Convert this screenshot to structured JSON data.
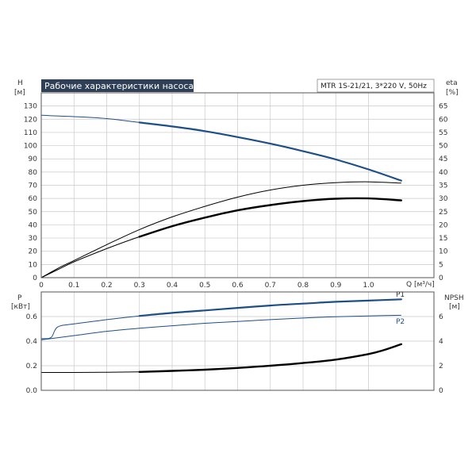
{
  "chart_data": [
    {
      "type": "line",
      "title": "Рабочие характеристики насоса",
      "subtitle": "MTR 1S-21/21, 3*220 V, 50Hz",
      "xlabel": "Q [м³/ч]",
      "ylabel_left": "H",
      "ylabel_left_unit": "[м]",
      "ylabel_right": "eta",
      "ylabel_right_unit": "[%]",
      "xlim": [
        0,
        1.2
      ],
      "ylim": [
        0,
        140
      ],
      "ylim_right": [
        0,
        70
      ],
      "x_ticks": [
        0,
        0.1,
        0.2,
        0.3,
        0.4,
        0.5,
        0.6,
        0.7,
        0.8,
        0.9,
        1.0
      ],
      "y_ticks": [
        0,
        10,
        20,
        30,
        40,
        50,
        60,
        70,
        80,
        90,
        100,
        110,
        120,
        130
      ],
      "y_ticks_right": [
        0,
        5,
        10,
        15,
        20,
        25,
        30,
        35,
        40,
        45,
        50,
        55,
        60,
        65
      ],
      "grid": true,
      "series": [
        {
          "axis": "left",
          "color": "#1d4f86",
          "width": 2.2,
          "x": [
            0,
            0.1,
            0.2,
            0.3,
            0.4,
            0.5,
            0.6,
            0.7,
            0.8,
            0.9,
            1.0,
            1.1
          ],
          "y": [
            123,
            122,
            120.5,
            117.5,
            114.5,
            111,
            106.5,
            101.5,
            95.8,
            89.5,
            82,
            73.5
          ],
          "highlight_from": 0.3
        },
        {
          "axis": "right",
          "color": "#000000",
          "width": 1,
          "x": [
            0,
            0.05,
            0.1,
            0.2,
            0.3,
            0.4,
            0.5,
            0.6,
            0.7,
            0.8,
            0.9,
            1.0,
            1.1
          ],
          "y": [
            0,
            3.5,
            6.5,
            12.5,
            18.2,
            23,
            27,
            30.5,
            33.2,
            35,
            36,
            36.3,
            35.8
          ]
        },
        {
          "axis": "left",
          "color": "#000000",
          "width": 2.4,
          "x": [
            0,
            0.05,
            0.1,
            0.2,
            0.3,
            0.4,
            0.5,
            0.6,
            0.7,
            0.8,
            0.9,
            1.0,
            1.1
          ],
          "y": [
            0,
            6,
            12,
            22,
            31,
            39,
            45.5,
            51,
            55,
            58,
            59.8,
            60,
            58.5
          ],
          "highlight_from": 0.3
        }
      ]
    },
    {
      "type": "line",
      "ylabel_left": "P",
      "ylabel_left_unit": "[кВт]",
      "ylabel_right": "NPSH",
      "ylabel_right_unit": "[м]",
      "xlim": [
        0,
        1.2
      ],
      "ylim": [
        0,
        0.8
      ],
      "ylim_right": [
        0,
        8
      ],
      "y_ticks": [
        0,
        0.2,
        0.4,
        0.6
      ],
      "y_tick_labels": [
        "0.0",
        "0.2",
        "0.4",
        "0.6"
      ],
      "y_ticks_right": [
        0,
        2,
        4,
        6
      ],
      "grid": true,
      "series": [
        {
          "name": "P1",
          "axis": "left",
          "color": "#1d4f86",
          "width": 2.2,
          "x": [
            0,
            0.03,
            0.05,
            0.1,
            0.2,
            0.3,
            0.4,
            0.5,
            0.6,
            0.7,
            0.8,
            0.9,
            1.0,
            1.1
          ],
          "y": [
            0.42,
            0.43,
            0.515,
            0.54,
            0.575,
            0.605,
            0.63,
            0.65,
            0.67,
            0.69,
            0.705,
            0.72,
            0.73,
            0.74
          ],
          "highlight_from": 0.3
        },
        {
          "name": "P2",
          "axis": "left",
          "color": "#1d4f86",
          "width": 1,
          "x": [
            0,
            0.1,
            0.2,
            0.3,
            0.4,
            0.5,
            0.6,
            0.7,
            0.8,
            0.9,
            1.0,
            1.1
          ],
          "y": [
            0.41,
            0.445,
            0.48,
            0.505,
            0.525,
            0.545,
            0.56,
            0.575,
            0.588,
            0.598,
            0.605,
            0.61
          ]
        },
        {
          "axis": "right",
          "color": "#000000",
          "width": 2.4,
          "x": [
            0,
            0.1,
            0.2,
            0.3,
            0.4,
            0.5,
            0.6,
            0.7,
            0.8,
            0.9,
            1.0,
            1.05,
            1.1
          ],
          "y": [
            1.45,
            1.45,
            1.47,
            1.5,
            1.58,
            1.68,
            1.82,
            2.0,
            2.22,
            2.5,
            2.95,
            3.3,
            3.75
          ],
          "highlight_from": 0.3
        }
      ]
    }
  ]
}
